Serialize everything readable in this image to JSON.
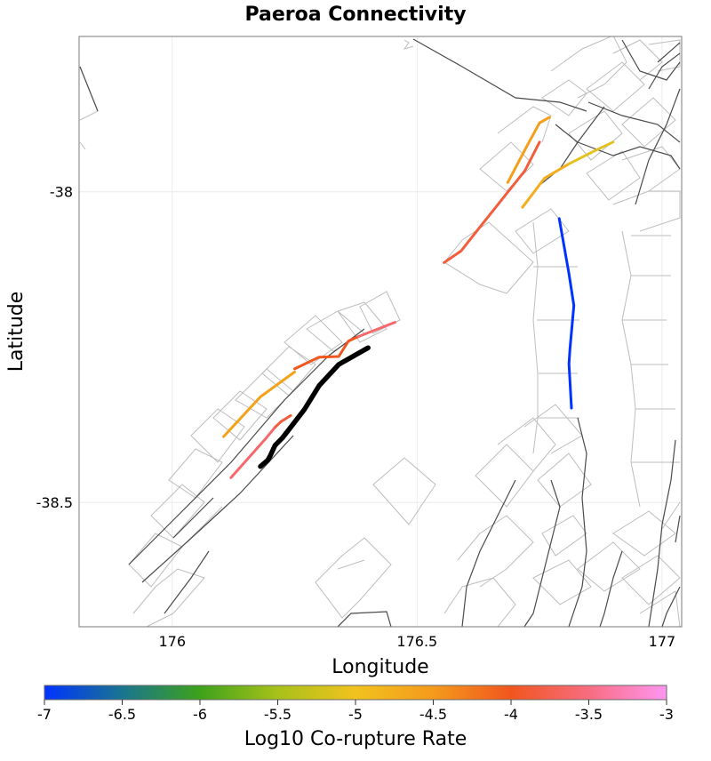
{
  "chart_data": {
    "type": "map",
    "title": "Paeroa Connectivity",
    "xlabel": "Longitude",
    "ylabel": "Latitude",
    "xlim": [
      175.81,
      177.04
    ],
    "ylim": [
      -38.7,
      -37.75
    ],
    "xticks": [
      {
        "value": 176,
        "label": "176"
      },
      {
        "value": 176.5,
        "label": "176.5"
      },
      {
        "value": 177,
        "label": "177"
      }
    ],
    "yticks": [
      {
        "value": -38,
        "label": "-38"
      },
      {
        "value": -38.5,
        "label": "-38.5"
      }
    ],
    "grid": true,
    "colorbar": {
      "label": "Log10 Co-rupture Rate",
      "range": [
        -7,
        -3
      ],
      "ticks": [
        {
          "value": -7,
          "label": "-7"
        },
        {
          "value": -6.5,
          "label": "-6.5"
        },
        {
          "value": -6,
          "label": "-6"
        },
        {
          "value": -5.5,
          "label": "-5.5"
        },
        {
          "value": -5,
          "label": "-5"
        },
        {
          "value": -4.5,
          "label": "-4.5"
        },
        {
          "value": -4,
          "label": "-4"
        },
        {
          "value": -3.5,
          "label": "-3.5"
        },
        {
          "value": -3,
          "label": "-3"
        }
      ],
      "stops": [
        {
          "value": -7,
          "color": "#0033ff"
        },
        {
          "value": -6.5,
          "color": "#197590"
        },
        {
          "value": -6,
          "color": "#3da21a"
        },
        {
          "value": -5.5,
          "color": "#a8c11a"
        },
        {
          "value": -5,
          "color": "#f2c21e"
        },
        {
          "value": -4.5,
          "color": "#f59a1c"
        },
        {
          "value": -4,
          "color": "#f0561e"
        },
        {
          "value": -3.5,
          "color": "#f86c80"
        },
        {
          "value": -3,
          "color": "#ff96f2"
        }
      ]
    },
    "source_fault": {
      "name": "Paeroa",
      "color": "#000000",
      "points": [
        [
          176.18,
          -38.442
        ],
        [
          176.195,
          -38.432
        ],
        [
          176.2,
          -38.425
        ],
        [
          176.21,
          -38.408
        ],
        [
          176.225,
          -38.396
        ],
        [
          176.235,
          -38.386
        ],
        [
          176.27,
          -38.35
        ],
        [
          176.3,
          -38.312
        ],
        [
          176.34,
          -38.278
        ],
        [
          176.4,
          -38.251
        ]
      ]
    },
    "series": [
      {
        "value": -4.6,
        "points": [
          [
            176.105,
            -38.394
          ],
          [
            176.18,
            -38.33
          ],
          [
            176.25,
            -38.29
          ]
        ]
      },
      {
        "value": -4.0,
        "points": [
          [
            176.25,
            -38.285
          ],
          [
            176.3,
            -38.266
          ],
          [
            176.34,
            -38.265
          ],
          [
            176.36,
            -38.24
          ],
          [
            176.38,
            -38.233
          ]
        ]
      },
      {
        "value": -3.6,
        "points": [
          [
            176.38,
            -38.233
          ],
          [
            176.455,
            -38.21
          ]
        ]
      },
      {
        "value": -3.6,
        "points": [
          [
            176.12,
            -38.46
          ],
          [
            176.19,
            -38.398
          ],
          [
            176.21,
            -38.379
          ]
        ]
      },
      {
        "value": -3.85,
        "points": [
          [
            176.21,
            -38.379
          ],
          [
            176.222,
            -38.37
          ],
          [
            176.242,
            -38.36
          ]
        ]
      },
      {
        "value": -3.85,
        "points": [
          [
            176.555,
            -38.114
          ],
          [
            176.59,
            -38.095
          ],
          [
            176.625,
            -38.06
          ],
          [
            176.72,
            -37.966
          ],
          [
            176.75,
            -37.92
          ]
        ]
      },
      {
        "value": -4.55,
        "points": [
          [
            176.685,
            -37.985
          ],
          [
            176.725,
            -37.925
          ],
          [
            176.75,
            -37.889
          ],
          [
            176.77,
            -37.88
          ]
        ]
      },
      {
        "value": -4.75,
        "points": [
          [
            176.715,
            -38.025
          ],
          [
            176.76,
            -37.978
          ],
          [
            176.81,
            -37.955
          ]
        ]
      },
      {
        "value": -5.1,
        "points": [
          [
            176.81,
            -37.955
          ],
          [
            176.86,
            -37.935
          ],
          [
            176.9,
            -37.92
          ]
        ]
      },
      {
        "value": -7.0,
        "points": [
          [
            176.79,
            -38.043
          ],
          [
            176.81,
            -38.132
          ],
          [
            176.82,
            -38.183
          ],
          [
            176.812,
            -38.253
          ],
          [
            176.81,
            -38.277
          ],
          [
            176.815,
            -38.348
          ]
        ]
      }
    ]
  }
}
